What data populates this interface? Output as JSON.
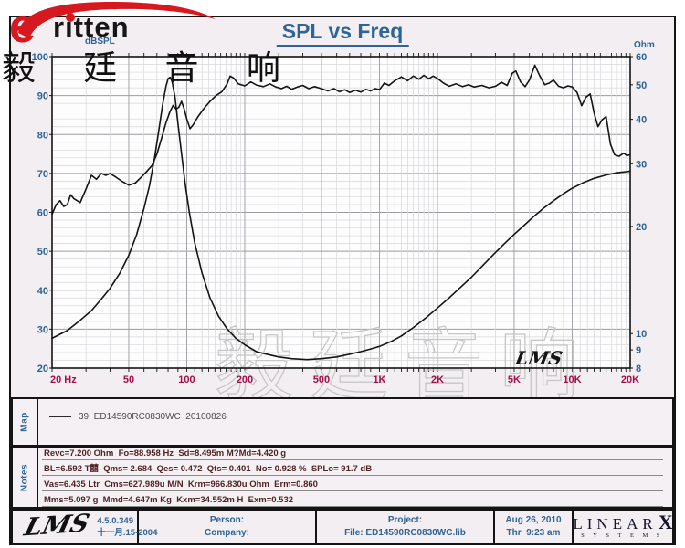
{
  "header": {
    "logo_text": "ritten",
    "logo_e": "e",
    "logo_cn": "毅 廷 音 响",
    "title": "SPL vs Freq"
  },
  "colors": {
    "accent_blue": "#2e6496",
    "tick_red": "#a5104a",
    "curve": "#141414",
    "grid_minor": "#d7d7db",
    "grid_major": "#9b9ba1",
    "frame": "#141414",
    "plot_bg": "#fdfdfd",
    "watermark": "#c7c7c7",
    "logo_red": "#d6191f"
  },
  "chart_data": {
    "type": "line",
    "title": "SPL vs Freq",
    "x_axis": {
      "scale": "log",
      "min": 20,
      "max": 20000,
      "ticks": [
        {
          "f": 20,
          "label": "20  Hz"
        },
        {
          "f": 50,
          "label": "50"
        },
        {
          "f": 100,
          "label": "100"
        },
        {
          "f": 200,
          "label": "200"
        },
        {
          "f": 500,
          "label": "500"
        },
        {
          "f": 1000,
          "label": "1K"
        },
        {
          "f": 2000,
          "label": "2K"
        },
        {
          "f": 5000,
          "label": "5K"
        },
        {
          "f": 10000,
          "label": "10K"
        },
        {
          "f": 20000,
          "label": "20K"
        }
      ]
    },
    "y_left": {
      "label": "dBSPL",
      "scale": "linear",
      "min": 20,
      "max": 100,
      "ticks": [
        100,
        90,
        80,
        70,
        60,
        50,
        40,
        30,
        20
      ]
    },
    "y_right": {
      "label": "Ohm",
      "scale": "log",
      "min": 8,
      "max": 60,
      "ticks": [
        60,
        50,
        40,
        30,
        20,
        10,
        9,
        8
      ]
    },
    "watermark": "毅廷音响",
    "lms_mark": "LMS",
    "series": [
      {
        "name": "SPL",
        "axis": "left",
        "unit": "dB",
        "points": [
          [
            20,
            59.5
          ],
          [
            21,
            62
          ],
          [
            22,
            63
          ],
          [
            23,
            61.5
          ],
          [
            24,
            62
          ],
          [
            25,
            64.5
          ],
          [
            26,
            63.5
          ],
          [
            28,
            62.5
          ],
          [
            30,
            66
          ],
          [
            32,
            69.5
          ],
          [
            34,
            68.5
          ],
          [
            36,
            70
          ],
          [
            38,
            69.5
          ],
          [
            40,
            70
          ],
          [
            43,
            69
          ],
          [
            46,
            68
          ],
          [
            50,
            67
          ],
          [
            54,
            67.5
          ],
          [
            58,
            69
          ],
          [
            62,
            70.5
          ],
          [
            66,
            72
          ],
          [
            70,
            75
          ],
          [
            74,
            79
          ],
          [
            78,
            83
          ],
          [
            82,
            86
          ],
          [
            85,
            87.5
          ],
          [
            88,
            86.5
          ],
          [
            91,
            87
          ],
          [
            94,
            88.5
          ],
          [
            97,
            86.5
          ],
          [
            100,
            84
          ],
          [
            104,
            81.5
          ],
          [
            108,
            82.5
          ],
          [
            114,
            84.5
          ],
          [
            122,
            86.5
          ],
          [
            132,
            88.5
          ],
          [
            142,
            90
          ],
          [
            152,
            91
          ],
          [
            162,
            93
          ],
          [
            168,
            95
          ],
          [
            175,
            94.5
          ],
          [
            185,
            93
          ],
          [
            200,
            92.5
          ],
          [
            215,
            93.5
          ],
          [
            230,
            92.7
          ],
          [
            250,
            92.3
          ],
          [
            270,
            93
          ],
          [
            290,
            92.2
          ],
          [
            310,
            91.8
          ],
          [
            330,
            92.4
          ],
          [
            350,
            91.6
          ],
          [
            375,
            92.2
          ],
          [
            400,
            92.6
          ],
          [
            430,
            91.8
          ],
          [
            460,
            92.3
          ],
          [
            500,
            91.8
          ],
          [
            540,
            91.2
          ],
          [
            580,
            91.8
          ],
          [
            620,
            91
          ],
          [
            660,
            91.5
          ],
          [
            700,
            90.8
          ],
          [
            750,
            91.4
          ],
          [
            800,
            90.9
          ],
          [
            850,
            91.6
          ],
          [
            900,
            91.2
          ],
          [
            950,
            91.8
          ],
          [
            1000,
            91.5
          ],
          [
            1060,
            93.2
          ],
          [
            1120,
            92.6
          ],
          [
            1200,
            93.8
          ],
          [
            1300,
            94.8
          ],
          [
            1400,
            93.8
          ],
          [
            1500,
            95
          ],
          [
            1600,
            94.2
          ],
          [
            1700,
            95.2
          ],
          [
            1800,
            94.3
          ],
          [
            1900,
            95
          ],
          [
            2000,
            94.4
          ],
          [
            2150,
            93.2
          ],
          [
            2300,
            92.4
          ],
          [
            2500,
            93
          ],
          [
            2700,
            92.3
          ],
          [
            2900,
            92.8
          ],
          [
            3100,
            92.2
          ],
          [
            3400,
            92.6
          ],
          [
            3700,
            92
          ],
          [
            4000,
            92.4
          ],
          [
            4300,
            93.4
          ],
          [
            4600,
            92.6
          ],
          [
            4900,
            95.8
          ],
          [
            5100,
            96.3
          ],
          [
            5400,
            93.5
          ],
          [
            5700,
            92.3
          ],
          [
            6000,
            94
          ],
          [
            6400,
            97.8
          ],
          [
            6800,
            95
          ],
          [
            7200,
            92.8
          ],
          [
            7600,
            93.2
          ],
          [
            8000,
            94
          ],
          [
            8500,
            92.4
          ],
          [
            9000,
            92
          ],
          [
            9500,
            92.5
          ],
          [
            10000,
            92.2
          ],
          [
            10600,
            90.8
          ],
          [
            11200,
            87.4
          ],
          [
            11800,
            89.6
          ],
          [
            12400,
            90.4
          ],
          [
            13000,
            85.5
          ],
          [
            13600,
            82
          ],
          [
            14300,
            83.8
          ],
          [
            15000,
            84.6
          ],
          [
            15800,
            77.5
          ],
          [
            16600,
            74.8
          ],
          [
            17500,
            74.4
          ],
          [
            18500,
            75.2
          ],
          [
            19200,
            74.6
          ],
          [
            20000,
            74.8
          ]
        ]
      },
      {
        "name": "Impedance",
        "axis": "right",
        "unit": "Ohm",
        "points": [
          [
            20,
            9.7
          ],
          [
            24,
            10.2
          ],
          [
            28,
            10.9
          ],
          [
            32,
            11.6
          ],
          [
            36,
            12.5
          ],
          [
            40,
            13.4
          ],
          [
            45,
            14.8
          ],
          [
            50,
            16.6
          ],
          [
            55,
            19
          ],
          [
            60,
            22.5
          ],
          [
            64,
            26
          ],
          [
            68,
            31
          ],
          [
            72,
            38
          ],
          [
            75,
            44
          ],
          [
            78,
            49.5
          ],
          [
            80,
            52
          ],
          [
            82,
            52.5
          ],
          [
            84,
            51
          ],
          [
            87,
            46
          ],
          [
            90,
            39
          ],
          [
            94,
            32
          ],
          [
            98,
            26.5
          ],
          [
            103,
            22
          ],
          [
            110,
            18
          ],
          [
            120,
            14.8
          ],
          [
            132,
            12.6
          ],
          [
            146,
            11.2
          ],
          [
            162,
            10.3
          ],
          [
            180,
            9.7
          ],
          [
            200,
            9.3
          ],
          [
            230,
            8.9
          ],
          [
            260,
            8.75
          ],
          [
            300,
            8.6
          ],
          [
            350,
            8.5
          ],
          [
            420,
            8.45
          ],
          [
            500,
            8.5
          ],
          [
            600,
            8.6
          ],
          [
            700,
            8.75
          ],
          [
            800,
            8.9
          ],
          [
            900,
            9.05
          ],
          [
            1000,
            9.2
          ],
          [
            1150,
            9.5
          ],
          [
            1300,
            9.85
          ],
          [
            1500,
            10.4
          ],
          [
            1750,
            11.1
          ],
          [
            2000,
            11.8
          ],
          [
            2300,
            12.6
          ],
          [
            2600,
            13.4
          ],
          [
            3000,
            14.4
          ],
          [
            3500,
            15.7
          ],
          [
            4000,
            16.9
          ],
          [
            4500,
            18
          ],
          [
            5000,
            19
          ],
          [
            5600,
            20.1
          ],
          [
            6300,
            21.3
          ],
          [
            7100,
            22.5
          ],
          [
            8000,
            23.6
          ],
          [
            9000,
            24.7
          ],
          [
            10000,
            25.6
          ],
          [
            11500,
            26.6
          ],
          [
            13000,
            27.3
          ],
          [
            15000,
            27.9
          ],
          [
            17000,
            28.3
          ],
          [
            19000,
            28.5
          ],
          [
            20000,
            28.6
          ]
        ]
      }
    ]
  },
  "map_panel": {
    "tab": "Map",
    "legend": "39: ED14590RC0830WC  20100826"
  },
  "notes_panel": {
    "tab": "Notes",
    "lines": [
      "Revc=7.200 Ohm  Fo=88.958 Hz  Sd=8.495m M?Md=4.420 g",
      "BL=6.592 T囍  Qms= 2.684  Qes= 0.472  Qts= 0.401  No= 0.928 %  SPLo= 91.7 dB",
      "Vas=6.435 Ltr  Cms=627.989u M/N  Krm=966.830u Ohm  Erm=0.860",
      "Mms=5.097 g  Mmd=4.647m Kg  Kxm=34.552m H  Exm=0.532"
    ]
  },
  "footer": {
    "app": "LMS",
    "version": "4.5.0.349",
    "date_locale": "十一月.15-2004",
    "person_label": "Person:",
    "company_label": "Company:",
    "project_label": "Project:",
    "file_label": "File: ED14590RC0830WC.lib",
    "date": "Aug 26, 2010",
    "time": "Thr  9:23 am",
    "linearx_main": "LINEAR",
    "linearx_x": "X",
    "linearx_sub": "SYSTEMS"
  }
}
